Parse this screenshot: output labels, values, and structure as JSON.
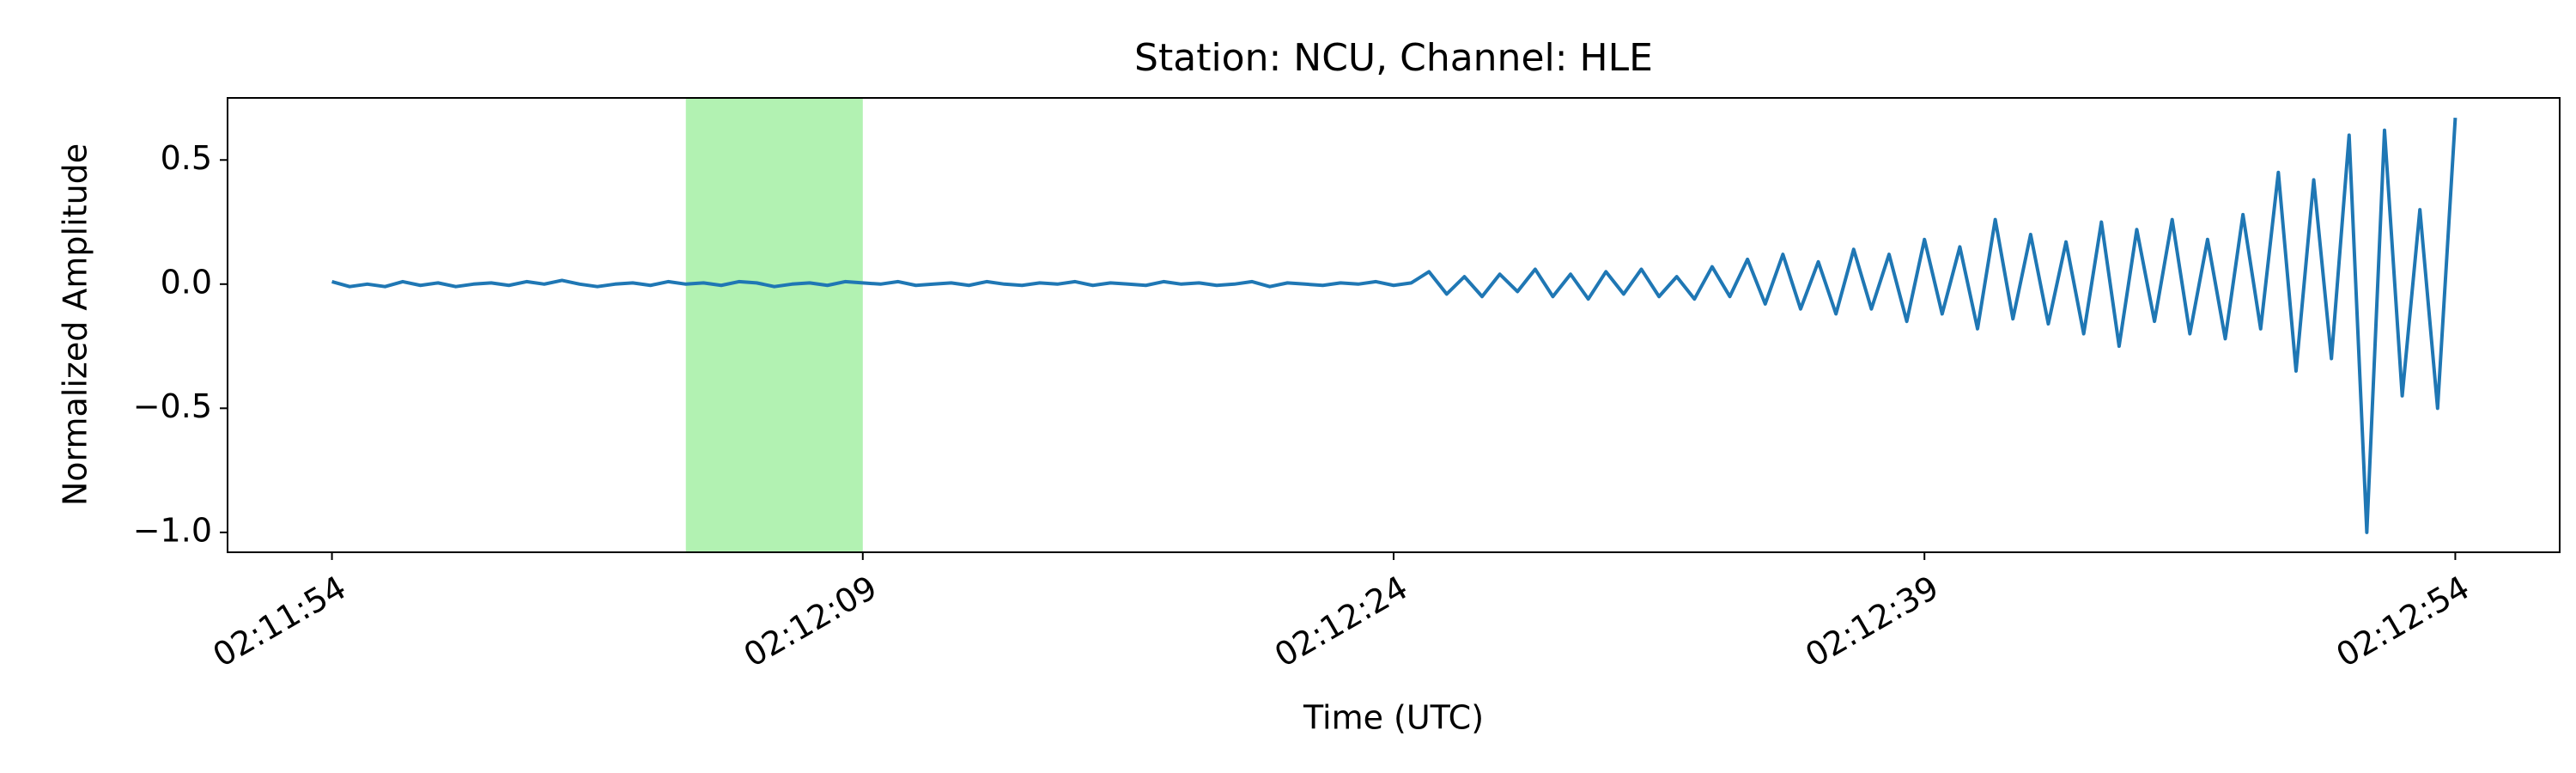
{
  "chart_data": {
    "type": "line",
    "title": "Station: NCU, Channel: HLE",
    "xlabel": "Time (UTC)",
    "ylabel": "Normalized Amplitude",
    "color": "#1f77b4",
    "highlight": {
      "x": [
        7924,
        7929
      ],
      "color": "#b2f2b2"
    },
    "xlim": [
      7911.05,
      7976.95
    ],
    "ylim": [
      -1.08,
      0.75
    ],
    "xticks": [
      {
        "value": 7914,
        "label": "02:11:54"
      },
      {
        "value": 7929,
        "label": "02:12:09"
      },
      {
        "value": 7944,
        "label": "02:12:24"
      },
      {
        "value": 7959,
        "label": "02:12:39"
      },
      {
        "value": 7974,
        "label": "02:12:54"
      }
    ],
    "yticks": [
      {
        "value": -1,
        "label": "−1.0"
      },
      {
        "value": -0.5,
        "label": "−0.5"
      },
      {
        "value": 0,
        "label": "0.0"
      },
      {
        "value": 0.5,
        "label": "0.5"
      }
    ],
    "x": [
      7914,
      7914.5,
      7915,
      7915.5,
      7916,
      7916.5,
      7917,
      7917.5,
      7918,
      7918.5,
      7919,
      7919.5,
      7920,
      7920.5,
      7921,
      7921.5,
      7922,
      7922.5,
      7923,
      7923.5,
      7924,
      7924.5,
      7925,
      7925.5,
      7926,
      7926.5,
      7927,
      7927.5,
      7928,
      7928.5,
      7929,
      7929.5,
      7930,
      7930.5,
      7931,
      7931.5,
      7932,
      7932.5,
      7933,
      7933.5,
      7934,
      7934.5,
      7935,
      7935.5,
      7936,
      7936.5,
      7937,
      7937.5,
      7938,
      7938.5,
      7939,
      7939.5,
      7940,
      7940.5,
      7941,
      7941.5,
      7942,
      7942.5,
      7943,
      7943.5,
      7944,
      7944.5,
      7945,
      7945.5,
      7946,
      7946.5,
      7947,
      7947.5,
      7948,
      7948.5,
      7949,
      7949.5,
      7950,
      7950.5,
      7951,
      7951.5,
      7952,
      7952.5,
      7953,
      7953.5,
      7954,
      7954.5,
      7955,
      7955.5,
      7956,
      7956.5,
      7957,
      7957.5,
      7958,
      7958.5,
      7959,
      7959.5,
      7960,
      7960.5,
      7961,
      7961.5,
      7962,
      7962.5,
      7963,
      7963.5,
      7964,
      7964.5,
      7965,
      7965.5,
      7966,
      7966.5,
      7967,
      7967.5,
      7968,
      7968.5,
      7969,
      7969.5,
      7970,
      7970.5,
      7971,
      7971.5,
      7972,
      7972.5,
      7973,
      7973.5,
      7974
    ],
    "values": [
      0.01,
      -0.01,
      0.0,
      -0.01,
      0.01,
      -0.005,
      0.005,
      -0.01,
      0.0,
      0.005,
      -0.005,
      0.01,
      0.0,
      0.015,
      0.0,
      -0.01,
      0.0,
      0.005,
      -0.005,
      0.01,
      0.0,
      0.005,
      -0.005,
      0.01,
      0.005,
      -0.01,
      0.0,
      0.005,
      -0.005,
      0.01,
      0.005,
      0.0,
      0.01,
      -0.005,
      0.0,
      0.005,
      -0.005,
      0.01,
      0.0,
      -0.005,
      0.005,
      0.0,
      0.01,
      -0.005,
      0.005,
      0.0,
      -0.005,
      0.01,
      0.0,
      0.005,
      -0.005,
      0.0,
      0.01,
      -0.01,
      0.005,
      0.0,
      -0.005,
      0.005,
      0.0,
      0.01,
      -0.005,
      0.005,
      0.05,
      -0.04,
      0.03,
      -0.05,
      0.04,
      -0.03,
      0.06,
      -0.05,
      0.04,
      -0.06,
      0.05,
      -0.04,
      0.06,
      -0.05,
      0.03,
      -0.06,
      0.07,
      -0.05,
      0.1,
      -0.08,
      0.12,
      -0.1,
      0.09,
      -0.12,
      0.14,
      -0.1,
      0.12,
      -0.15,
      0.18,
      -0.12,
      0.15,
      -0.18,
      0.26,
      -0.14,
      0.2,
      -0.16,
      0.17,
      -0.2,
      0.25,
      -0.25,
      0.22,
      -0.15,
      0.26,
      -0.2,
      0.18,
      -0.22,
      0.28,
      -0.18,
      0.45,
      -0.35,
      0.42,
      -0.3,
      0.6,
      -1.0,
      0.62,
      -0.45,
      0.3,
      -0.5,
      0.67
    ]
  }
}
